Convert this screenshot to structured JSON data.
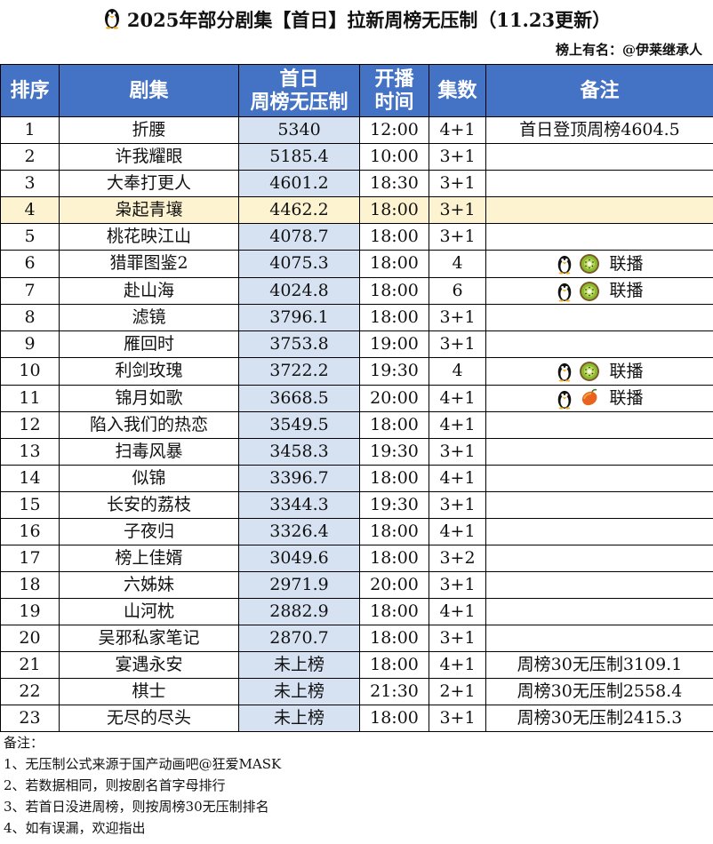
{
  "title": "2025年部分剧集【首日】拉新周榜无压制（11.23更新）",
  "credit": "榜上有名：@伊莱继承人",
  "columns": {
    "rank": "排序",
    "drama": "剧集",
    "score_line1": "首日",
    "score_line2": "周榜无压制",
    "time_line1": "开播",
    "time_line2": "时间",
    "episodes": "集数",
    "note": "备注"
  },
  "colors": {
    "header_bg": "#4472c4",
    "score_bg": "#d6e2f2",
    "highlight_row": "#fdf3d0"
  },
  "rows": [
    {
      "rank": "1",
      "drama": "折腰",
      "score": "5340",
      "time": "12:00",
      "episodes": "4+1",
      "note": "首日登顶周榜4604.5"
    },
    {
      "rank": "2",
      "drama": "许我耀眼",
      "score": "5185.4",
      "time": "10:00",
      "episodes": "3+1",
      "note": ""
    },
    {
      "rank": "3",
      "drama": "大奉打更人",
      "score": "4601.2",
      "time": "18:30",
      "episodes": "3+1",
      "note": ""
    },
    {
      "rank": "4",
      "drama": "枭起青壤",
      "score": "4462.2",
      "time": "18:00",
      "episodes": "3+1",
      "note": ""
    },
    {
      "rank": "5",
      "drama": "桃花映江山",
      "score": "4078.7",
      "time": "18:00",
      "episodes": "3+1",
      "note": ""
    },
    {
      "rank": "6",
      "drama": "猎罪图鉴2",
      "score": "4075.3",
      "time": "18:00",
      "episodes": "4",
      "note": "联播",
      "icons": [
        "penguin-icon",
        "kiwi-icon"
      ]
    },
    {
      "rank": "7",
      "drama": "赴山海",
      "score": "4024.8",
      "time": "18:00",
      "episodes": "6",
      "note": "联播",
      "icons": [
        "penguin-icon",
        "kiwi-icon"
      ]
    },
    {
      "rank": "8",
      "drama": "滤镜",
      "score": "3796.1",
      "time": "18:00",
      "episodes": "3+1",
      "note": ""
    },
    {
      "rank": "9",
      "drama": "雁回时",
      "score": "3753.8",
      "time": "19:00",
      "episodes": "3+1",
      "note": ""
    },
    {
      "rank": "10",
      "drama": "利剑玫瑰",
      "score": "3722.2",
      "time": "19:30",
      "episodes": "4",
      "note": "联播",
      "icons": [
        "penguin-icon",
        "kiwi-icon"
      ]
    },
    {
      "rank": "11",
      "drama": "锦月如歌",
      "score": "3668.5",
      "time": "20:00",
      "episodes": "4+1",
      "note": "联播",
      "icons": [
        "penguin-icon",
        "mango-icon"
      ]
    },
    {
      "rank": "12",
      "drama": "陷入我们的热恋",
      "score": "3549.5",
      "time": "18:00",
      "episodes": "4+1",
      "note": ""
    },
    {
      "rank": "13",
      "drama": "扫毒风暴",
      "score": "3458.3",
      "time": "19:30",
      "episodes": "3+1",
      "note": ""
    },
    {
      "rank": "14",
      "drama": "似锦",
      "score": "3396.7",
      "time": "18:00",
      "episodes": "4+1",
      "note": ""
    },
    {
      "rank": "15",
      "drama": "长安的荔枝",
      "score": "3344.3",
      "time": "19:30",
      "episodes": "3+1",
      "note": ""
    },
    {
      "rank": "16",
      "drama": "子夜归",
      "score": "3326.4",
      "time": "18:00",
      "episodes": "4+1",
      "note": ""
    },
    {
      "rank": "17",
      "drama": "榜上佳婿",
      "score": "3049.6",
      "time": "18:00",
      "episodes": "3+2",
      "note": ""
    },
    {
      "rank": "18",
      "drama": "六姊妹",
      "score": "2971.9",
      "time": "20:00",
      "episodes": "3+1",
      "note": ""
    },
    {
      "rank": "19",
      "drama": "山河枕",
      "score": "2882.9",
      "time": "18:00",
      "episodes": "4+1",
      "note": ""
    },
    {
      "rank": "20",
      "drama": "吴邪私家笔记",
      "score": "2870.7",
      "time": "18:00",
      "episodes": "3+1",
      "note": ""
    },
    {
      "rank": "21",
      "drama": "宴遇永安",
      "score": "未上榜",
      "time": "18:00",
      "episodes": "4+1",
      "note": "周榜30无压制3109.1"
    },
    {
      "rank": "22",
      "drama": "棋士",
      "score": "未上榜",
      "time": "21:30",
      "episodes": "2+1",
      "note": "周榜30无压制2558.4"
    },
    {
      "rank": "23",
      "drama": "无尽的尽头",
      "score": "未上榜",
      "time": "18:00",
      "episodes": "3+1",
      "note": "周榜30无压制2415.3"
    }
  ],
  "footnotes": {
    "heading": "备注：",
    "lines": [
      "1、无压制公式来源于国产动画吧@狂爱MASK",
      "2、若数据相同，则按剧名首字母排行",
      "3、若首日没进周榜，则按周榜30无压制排名",
      "4、如有误漏，欢迎指出"
    ]
  }
}
